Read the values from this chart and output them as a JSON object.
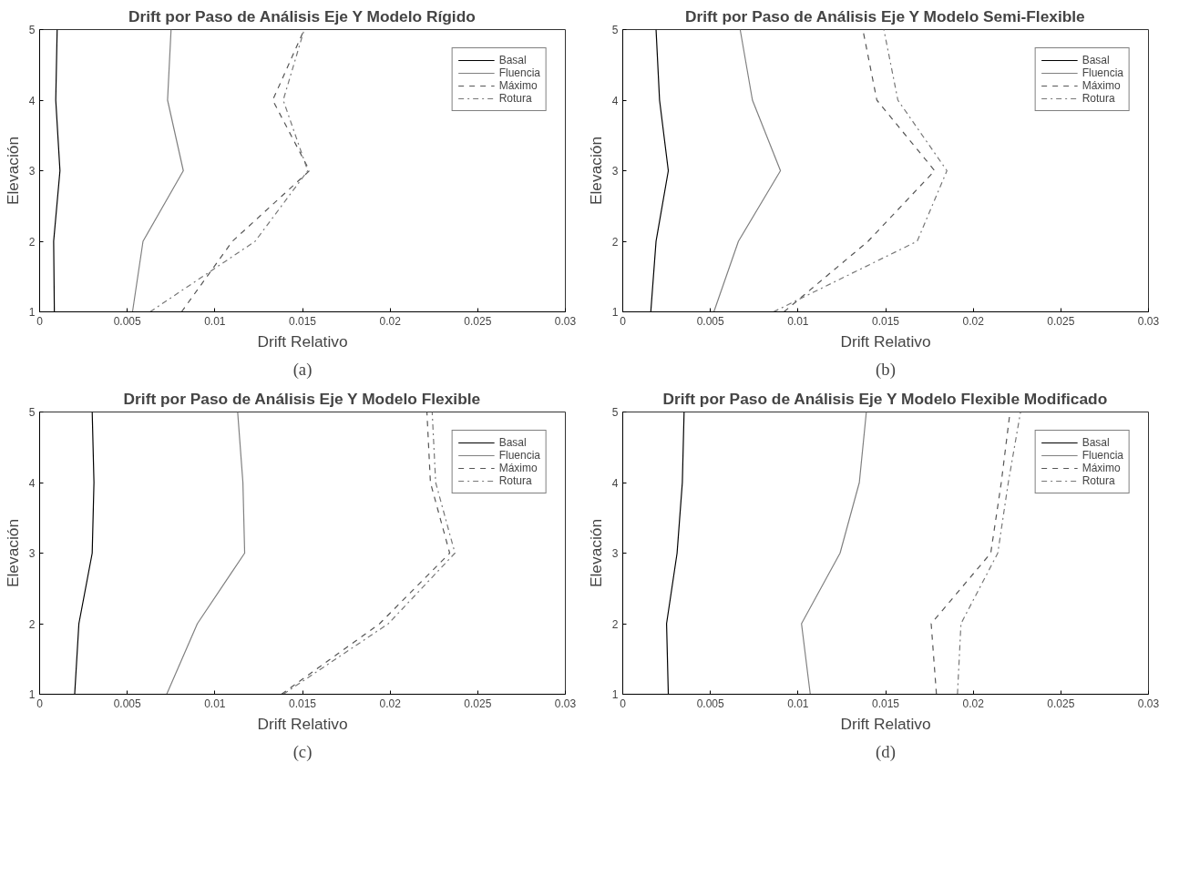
{
  "chart_data": [
    {
      "type": "line",
      "title": "Drift por Paso de Análisis Eje Y Modelo Rígido",
      "xlabel": "Drift Relativo",
      "ylabel": "Elevación",
      "annotations": [
        "(a)"
      ],
      "xlim": [
        0,
        0.03
      ],
      "xticks": [
        0,
        0.005,
        0.01,
        0.015,
        0.02,
        0.025,
        0.03
      ],
      "ylim": [
        1,
        5
      ],
      "yticks": [
        1,
        2,
        3,
        4,
        5
      ],
      "grid": false,
      "legend": "top right",
      "series": [
        {
          "name": "Basal",
          "color": "#000000",
          "line_style": "solid",
          "x": [
            0.00084,
            0.0008,
            0.00116,
            0.00092,
            0.001
          ],
          "values": [
            1,
            2,
            3,
            4,
            5
          ]
        },
        {
          "name": "Fluencia",
          "color": "#808080",
          "line_style": "solid",
          "x": [
            0.0053,
            0.0059,
            0.0082,
            0.0073,
            0.0075
          ],
          "values": [
            1,
            2,
            3,
            4,
            5
          ]
        },
        {
          "name": "Máximo",
          "color": "#555555",
          "line_style": "dashed",
          "x": [
            0.0081,
            0.011,
            0.0154,
            0.0133,
            0.0151
          ],
          "values": [
            1,
            2,
            3,
            4,
            5
          ]
        },
        {
          "name": "Rotura",
          "color": "#777777",
          "line_style": "dashdot",
          "x": [
            0.0063,
            0.0123,
            0.0153,
            0.0139,
            0.0151
          ],
          "values": [
            1,
            2,
            3,
            4,
            5
          ]
        }
      ]
    },
    {
      "type": "line",
      "title": "Drift por Paso de Análisis Eje Y Modelo Semi-Flexible",
      "xlabel": "Drift Relativo",
      "ylabel": "Elevación",
      "annotations": [
        "(b)"
      ],
      "xlim": [
        0,
        0.03
      ],
      "xticks": [
        0,
        0.005,
        0.01,
        0.015,
        0.02,
        0.025,
        0.03
      ],
      "ylim": [
        1,
        5
      ],
      "yticks": [
        1,
        2,
        3,
        4,
        5
      ],
      "grid": false,
      "legend": "top right",
      "series": [
        {
          "name": "Basal",
          "color": "#000000",
          "line_style": "solid",
          "x": [
            0.0016,
            0.0019,
            0.0026,
            0.0021,
            0.0019
          ],
          "values": [
            1,
            2,
            3,
            4,
            5
          ]
        },
        {
          "name": "Fluencia",
          "color": "#808080",
          "line_style": "solid",
          "x": [
            0.0052,
            0.0066,
            0.009,
            0.0074,
            0.0067
          ],
          "values": [
            1,
            2,
            3,
            4,
            5
          ]
        },
        {
          "name": "Máximo",
          "color": "#555555",
          "line_style": "dashed",
          "x": [
            0.0092,
            0.014,
            0.0178,
            0.0145,
            0.0137
          ],
          "values": [
            1,
            2,
            3,
            4,
            5
          ]
        },
        {
          "name": "Rotura",
          "color": "#777777",
          "line_style": "dashdot",
          "x": [
            0.0086,
            0.0168,
            0.0185,
            0.0157,
            0.0149
          ],
          "values": [
            1,
            2,
            3,
            4,
            5
          ]
        }
      ]
    },
    {
      "type": "line",
      "title": "Drift por Paso de Análisis Eje Y Modelo Flexible",
      "xlabel": "Drift Relativo",
      "ylabel": "Elevación",
      "annotations": [
        "(c)"
      ],
      "xlim": [
        0,
        0.03
      ],
      "xticks": [
        0,
        0.005,
        0.01,
        0.015,
        0.02,
        0.025,
        0.03
      ],
      "ylim": [
        1,
        5
      ],
      "yticks": [
        1,
        2,
        3,
        4,
        5
      ],
      "grid": false,
      "legend": "top right",
      "series": [
        {
          "name": "Basal",
          "color": "#000000",
          "line_style": "solid",
          "x": [
            0.002,
            0.00224,
            0.003,
            0.0031,
            0.003
          ],
          "values": [
            1,
            2,
            3,
            4,
            5
          ]
        },
        {
          "name": "Fluencia",
          "color": "#808080",
          "line_style": "solid",
          "x": [
            0.00725,
            0.009,
            0.0117,
            0.0116,
            0.0113
          ],
          "values": [
            1,
            2,
            3,
            4,
            5
          ]
        },
        {
          "name": "Máximo",
          "color": "#555555",
          "line_style": "dashed",
          "x": [
            0.0138,
            0.0194,
            0.0234,
            0.0223,
            0.0221
          ],
          "values": [
            1,
            2,
            3,
            4,
            5
          ]
        },
        {
          "name": "Rotura",
          "color": "#777777",
          "line_style": "dashdot",
          "x": [
            0.0139,
            0.0199,
            0.0237,
            0.0226,
            0.0224
          ],
          "values": [
            1,
            2,
            3,
            4,
            5
          ]
        }
      ]
    },
    {
      "type": "line",
      "title": "Drift por Paso de Análisis Eje Y Modelo Flexible Modificado",
      "xlabel": "Drift Relativo",
      "ylabel": "Elevación",
      "annotations": [
        "(d)"
      ],
      "xlim": [
        0,
        0.03
      ],
      "xticks": [
        0,
        0.005,
        0.01,
        0.015,
        0.02,
        0.025,
        0.03
      ],
      "ylim": [
        1,
        5
      ],
      "yticks": [
        1,
        2,
        3,
        4,
        5
      ],
      "grid": false,
      "legend": "top right",
      "series": [
        {
          "name": "Basal",
          "color": "#000000",
          "line_style": "solid",
          "x": [
            0.0026,
            0.0025,
            0.0031,
            0.0034,
            0.0035
          ],
          "values": [
            1,
            2,
            3,
            4,
            5
          ]
        },
        {
          "name": "Fluencia",
          "color": "#808080",
          "line_style": "solid",
          "x": [
            0.0107,
            0.0102,
            0.0124,
            0.0135,
            0.0139
          ],
          "values": [
            1,
            2,
            3,
            4,
            5
          ]
        },
        {
          "name": "Máximo",
          "color": "#555555",
          "line_style": "dashed",
          "x": [
            0.0179,
            0.0176,
            0.021,
            0.0216,
            0.0221
          ],
          "values": [
            1,
            2,
            3,
            4,
            5
          ]
        },
        {
          "name": "Rotura",
          "color": "#777777",
          "line_style": "dashdot",
          "x": [
            0.0191,
            0.0193,
            0.0214,
            0.022,
            0.0227
          ],
          "values": [
            1,
            2,
            3,
            4,
            5
          ]
        }
      ]
    }
  ]
}
